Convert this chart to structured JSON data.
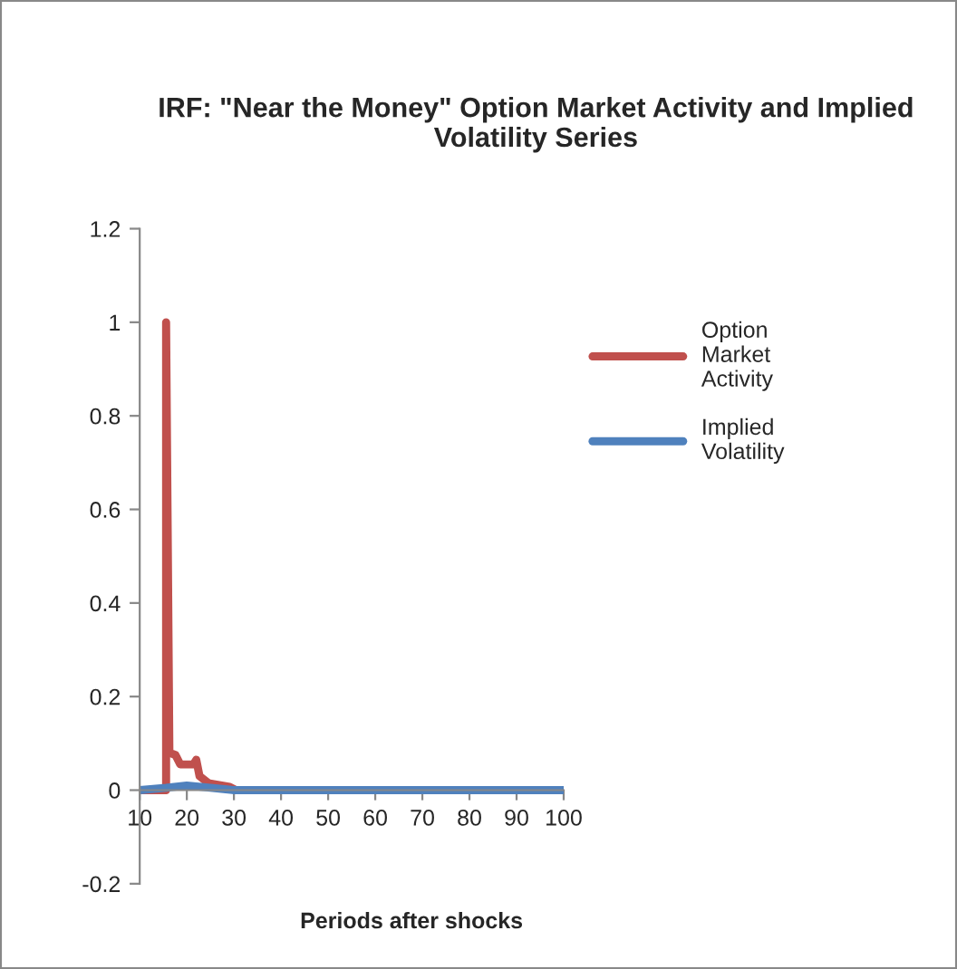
{
  "chart_data": {
    "type": "line",
    "title": "IRF: \"Near the Money\" Option Market Activity and Implied Volatility Series",
    "xlabel": "Periods after shocks",
    "series": [
      {
        "name": "Option Market Activity",
        "color": "#c0504d",
        "x": [
          10,
          15.6,
          15.6,
          16.3,
          17.6,
          18.6,
          21.4,
          22,
          22.7,
          24.6,
          29.1,
          30.4,
          100
        ],
        "values": [
          0,
          0,
          1,
          0.08,
          0.075,
          0.055,
          0.055,
          0.065,
          0.03,
          0.015,
          0.007,
          0,
          0
        ]
      },
      {
        "name": "Implied Volatility",
        "color": "#4f81bd",
        "x": [
          10,
          15.6,
          20,
          25,
          30,
          100
        ],
        "values": [
          0,
          0.005,
          0.01,
          0.005,
          0,
          0
        ]
      }
    ],
    "xlim": [
      10,
      100
    ],
    "xticks": [
      10,
      20,
      30,
      40,
      50,
      60,
      70,
      80,
      90,
      100
    ],
    "ylim": [
      -0.2,
      1.2
    ],
    "yticks": [
      -0.2,
      0,
      0.2,
      0.4,
      0.6,
      0.8,
      1,
      1.2
    ],
    "grid": false,
    "legend": "right",
    "marker": "none",
    "line_style": "solid"
  }
}
